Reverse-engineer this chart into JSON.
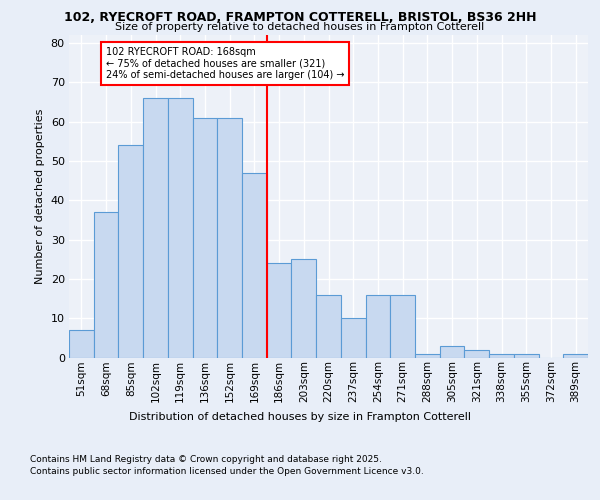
{
  "title1": "102, RYECROFT ROAD, FRAMPTON COTTERELL, BRISTOL, BS36 2HH",
  "title2": "Size of property relative to detached houses in Frampton Cotterell",
  "xlabel": "Distribution of detached houses by size in Frampton Cotterell",
  "ylabel": "Number of detached properties",
  "categories": [
    "51sqm",
    "68sqm",
    "85sqm",
    "102sqm",
    "119sqm",
    "136sqm",
    "152sqm",
    "169sqm",
    "186sqm",
    "203sqm",
    "220sqm",
    "237sqm",
    "254sqm",
    "271sqm",
    "288sqm",
    "305sqm",
    "321sqm",
    "338sqm",
    "355sqm",
    "372sqm",
    "389sqm"
  ],
  "values": [
    7,
    37,
    54,
    66,
    66,
    61,
    61,
    47,
    24,
    25,
    16,
    10,
    16,
    16,
    1,
    3,
    2,
    1,
    1,
    0,
    1
  ],
  "bar_color": "#c8d9f0",
  "bar_edge_color": "#5b9bd5",
  "vline_index": 7,
  "vline_color": "red",
  "annotation_text": "102 RYECROFT ROAD: 168sqm\n← 75% of detached houses are smaller (321)\n24% of semi-detached houses are larger (104) →",
  "annotation_box_color": "white",
  "annotation_box_edge": "red",
  "ylim": [
    0,
    82
  ],
  "yticks": [
    0,
    10,
    20,
    30,
    40,
    50,
    60,
    70,
    80
  ],
  "footer1": "Contains HM Land Registry data © Crown copyright and database right 2025.",
  "footer2": "Contains public sector information licensed under the Open Government Licence v3.0.",
  "bg_color": "#e8eef8",
  "plot_bg_color": "#edf1f8",
  "grid_color": "white"
}
